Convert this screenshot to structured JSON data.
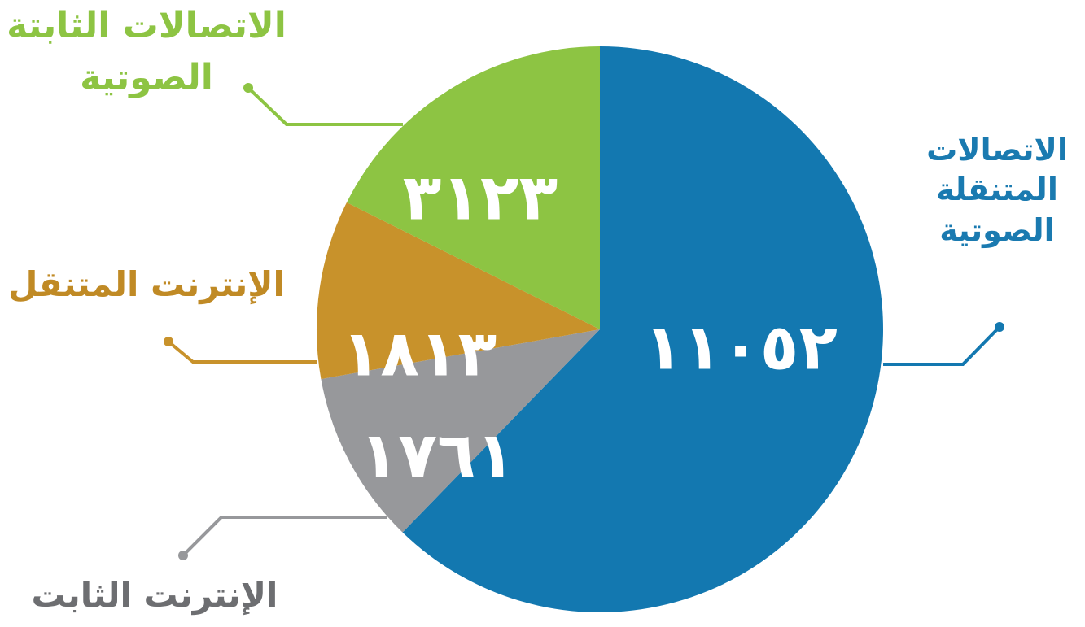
{
  "chart_data": {
    "type": "pie",
    "categories": [
      "الاتصالات المتنقلة الصوتية",
      "الإنترنت الثابت",
      "الإنترنت المتنقل",
      "الاتصالات الثابتة الصوتية"
    ],
    "values": [
      11052,
      1761,
      1813,
      3123
    ],
    "value_labels": [
      "١١٠٥٢",
      "١٧٦١",
      "١٨١٣",
      "٣١٢٣"
    ],
    "colors": [
      "#1378b0",
      "#97989b",
      "#c8922b",
      "#8dc443"
    ]
  }
}
